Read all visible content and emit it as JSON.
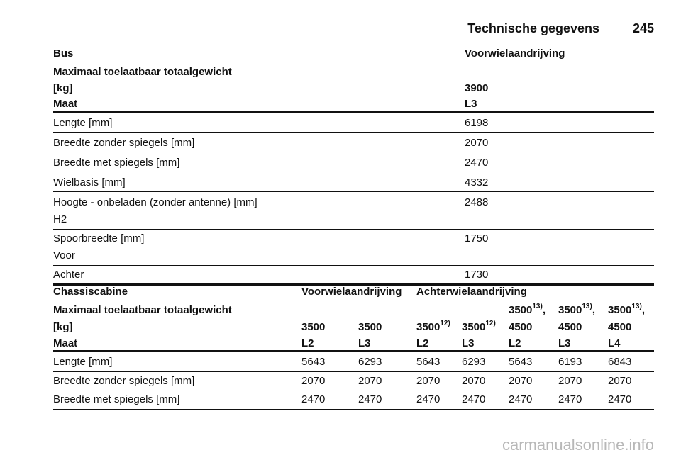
{
  "header": {
    "title": "Technische gegevens",
    "page": "245"
  },
  "table1": {
    "title": "Bus",
    "drive": "Voorwielaandrijving",
    "weight_label": [
      "Maximaal toelaatbaar totaalgewicht",
      "[kg]"
    ],
    "weight": "3900",
    "size_label": "Maat",
    "size": "L3",
    "rows": [
      {
        "label": "Lengte [mm]",
        "value": "6198"
      },
      {
        "label": "Breedte zonder spiegels [mm]",
        "value": "2070"
      },
      {
        "label": "Breedte met spiegels [mm]",
        "value": "2470"
      },
      {
        "label": "Wielbasis [mm]",
        "value": "4332"
      },
      {
        "label": "Hoogte - onbeladen (zonder antenne) [mm]",
        "sub": "H2",
        "value": "2488"
      },
      {
        "label": "Spoorbreedte [mm]",
        "sub": "Voor",
        "value": "1750"
      },
      {
        "label": "Achter",
        "value": "1730"
      }
    ]
  },
  "table2": {
    "title": "Chassiscabine",
    "drives": [
      "Voorwielaandrijving",
      "Achterwielaandrijving"
    ],
    "weight_label": [
      "Maximaal toelaatbaar totaalgewicht",
      "[kg]"
    ],
    "weights": [
      {
        "value": "3500"
      },
      {
        "value": "3500"
      },
      {
        "value": "3500",
        "sup": "12)"
      },
      {
        "value": "3500",
        "sup": "12)"
      },
      {
        "top": "3500",
        "top_sup": "13)",
        "top_sep": ",",
        "value": "4500"
      },
      {
        "top": "3500",
        "top_sup": "13)",
        "top_sep": ",",
        "value": "4500"
      },
      {
        "top": "3500",
        "top_sup": "13)",
        "top_sep": ",",
        "value": "4500"
      }
    ],
    "size_label": "Maat",
    "sizes": [
      "L2",
      "L3",
      "L2",
      "L3",
      "L2",
      "L3",
      "L4"
    ],
    "rows": [
      {
        "label": "Lengte [mm]",
        "values": [
          "5643",
          "6293",
          "5643",
          "6293",
          "5643",
          "6193",
          "6843"
        ]
      },
      {
        "label": "Breedte zonder spiegels [mm]",
        "values": [
          "2070",
          "2070",
          "2070",
          "2070",
          "2070",
          "2070",
          "2070"
        ]
      },
      {
        "label": "Breedte met spiegels [mm]",
        "values": [
          "2470",
          "2470",
          "2470",
          "2470",
          "2470",
          "2470",
          "2470"
        ]
      }
    ]
  },
  "watermark": "carmanualsonline.info"
}
